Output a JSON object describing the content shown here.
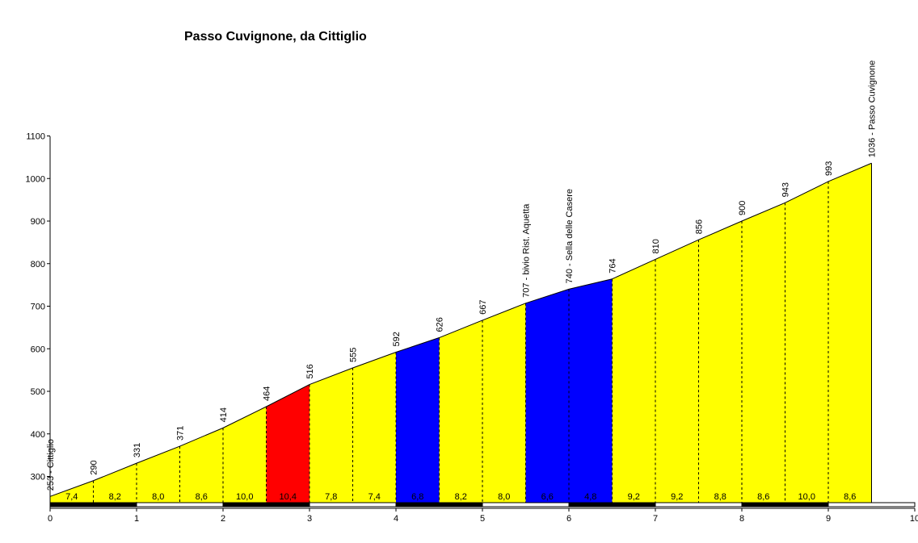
{
  "chart_data": {
    "type": "area",
    "title": "Passo Cuvignone, da Cittiglio",
    "xlabel": "",
    "ylabel": "",
    "xlim": [
      0,
      10
    ],
    "ylim": [
      240,
      1100
    ],
    "x_ticks": [
      "0",
      "1",
      "2",
      "3",
      "4",
      "5",
      "6",
      "7",
      "8",
      "9",
      "10"
    ],
    "y_ticks": [
      "300",
      "400",
      "500",
      "600",
      "700",
      "800",
      "900",
      "1000",
      "1100"
    ],
    "grid": false,
    "colors": {
      "yellow": "#ffff00",
      "red": "#ff0000",
      "blue": "#0000ff"
    },
    "points": [
      {
        "x": 0.0,
        "y": 253,
        "label": "253 - Cittiglio"
      },
      {
        "x": 0.5,
        "y": 290,
        "label": "290"
      },
      {
        "x": 1.0,
        "y": 331,
        "label": "331"
      },
      {
        "x": 1.5,
        "y": 371,
        "label": "371"
      },
      {
        "x": 2.0,
        "y": 414,
        "label": "414"
      },
      {
        "x": 2.5,
        "y": 464,
        "label": "464"
      },
      {
        "x": 3.0,
        "y": 516,
        "label": "516"
      },
      {
        "x": 3.5,
        "y": 555,
        "label": "555"
      },
      {
        "x": 4.0,
        "y": 592,
        "label": "592"
      },
      {
        "x": 4.5,
        "y": 626,
        "label": "626"
      },
      {
        "x": 5.0,
        "y": 667,
        "label": "667"
      },
      {
        "x": 5.5,
        "y": 707,
        "label": "707 - bivio Rist. Aquetta"
      },
      {
        "x": 6.0,
        "y": 740,
        "label": "740 - Sella delle Casere"
      },
      {
        "x": 6.5,
        "y": 764,
        "label": "764"
      },
      {
        "x": 7.0,
        "y": 810,
        "label": "810"
      },
      {
        "x": 7.5,
        "y": 856,
        "label": "856"
      },
      {
        "x": 8.0,
        "y": 900,
        "label": "900"
      },
      {
        "x": 8.5,
        "y": 943,
        "label": "943"
      },
      {
        "x": 9.0,
        "y": 993,
        "label": "993"
      },
      {
        "x": 9.5,
        "y": 1036,
        "label": "1036 - Passo Cuvignone"
      }
    ],
    "segments": [
      {
        "from": 0.0,
        "to": 0.5,
        "gradient": "7,4",
        "color": "yellow"
      },
      {
        "from": 0.5,
        "to": 1.0,
        "gradient": "8,2",
        "color": "yellow"
      },
      {
        "from": 1.0,
        "to": 1.5,
        "gradient": "8,0",
        "color": "yellow"
      },
      {
        "from": 1.5,
        "to": 2.0,
        "gradient": "8,6",
        "color": "yellow"
      },
      {
        "from": 2.0,
        "to": 2.5,
        "gradient": "10,0",
        "color": "yellow"
      },
      {
        "from": 2.5,
        "to": 3.0,
        "gradient": "10,4",
        "color": "red"
      },
      {
        "from": 3.0,
        "to": 3.5,
        "gradient": "7,8",
        "color": "yellow"
      },
      {
        "from": 3.5,
        "to": 4.0,
        "gradient": "7,4",
        "color": "yellow"
      },
      {
        "from": 4.0,
        "to": 4.5,
        "gradient": "6,8",
        "color": "blue"
      },
      {
        "from": 4.5,
        "to": 5.0,
        "gradient": "8,2",
        "color": "yellow"
      },
      {
        "from": 5.0,
        "to": 5.5,
        "gradient": "8,0",
        "color": "yellow"
      },
      {
        "from": 5.5,
        "to": 6.0,
        "gradient": "6,6",
        "color": "blue"
      },
      {
        "from": 6.0,
        "to": 6.5,
        "gradient": "4,8",
        "color": "blue"
      },
      {
        "from": 6.5,
        "to": 7.0,
        "gradient": "9,2",
        "color": "yellow"
      },
      {
        "from": 7.0,
        "to": 7.5,
        "gradient": "9,2",
        "color": "yellow"
      },
      {
        "from": 7.5,
        "to": 8.0,
        "gradient": "8,8",
        "color": "yellow"
      },
      {
        "from": 8.0,
        "to": 8.5,
        "gradient": "8,6",
        "color": "yellow"
      },
      {
        "from": 8.5,
        "to": 9.0,
        "gradient": "10,0",
        "color": "yellow"
      },
      {
        "from": 9.0,
        "to": 9.5,
        "gradient": "8,6",
        "color": "yellow"
      }
    ]
  }
}
